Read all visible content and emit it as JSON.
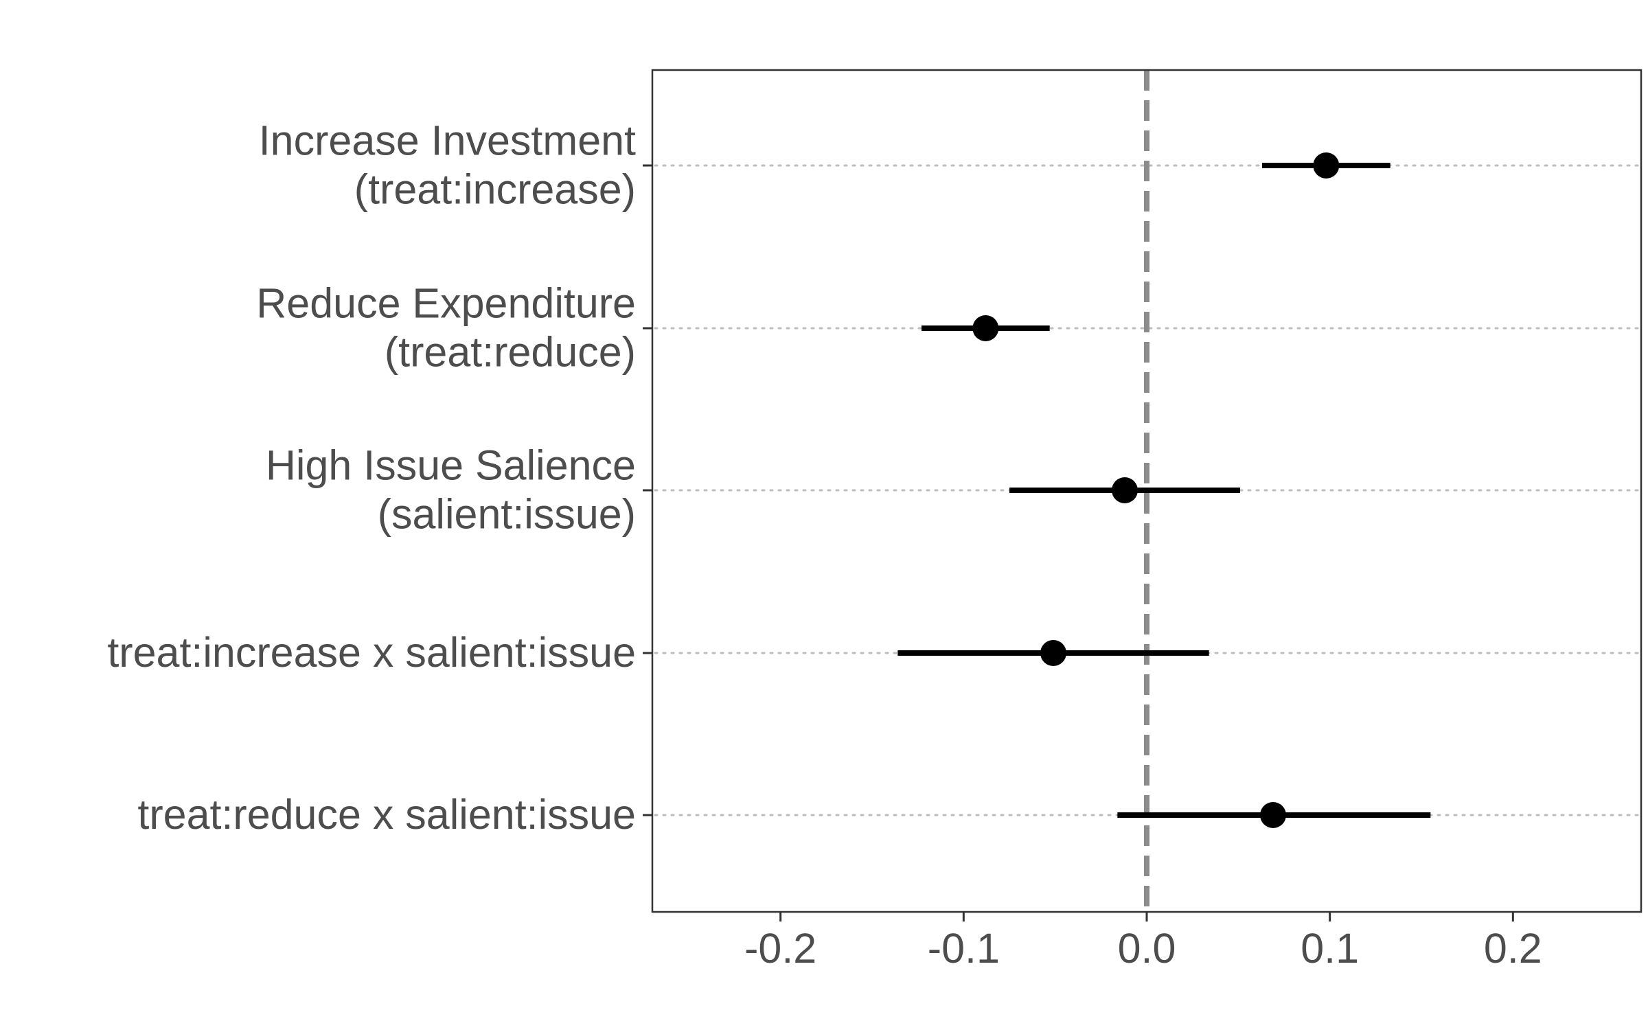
{
  "chart_data": {
    "type": "scatter",
    "subtype": "coefficient-plot",
    "title": "",
    "xlabel": "",
    "ylabel": "",
    "xlim": [
      -0.27,
      0.27
    ],
    "x_ticks": [
      {
        "value": -0.2,
        "label": "-0.2"
      },
      {
        "value": -0.1,
        "label": "-0.1"
      },
      {
        "value": 0.0,
        "label": "0.0"
      },
      {
        "value": 0.1,
        "label": "0.1"
      },
      {
        "value": 0.2,
        "label": "0.2"
      }
    ],
    "reference_line": {
      "x": 0.0,
      "style": "dashed",
      "color": "#8c8c8c"
    },
    "grid": {
      "horizontal_dotted": true,
      "vertical": false
    },
    "point_color": "#000000",
    "terms": [
      {
        "label_lines": [
          "Increase Investment",
          "(treat:increase)"
        ],
        "estimate": 0.098,
        "ci_low": 0.063,
        "ci_high": 0.133
      },
      {
        "label_lines": [
          "Reduce Expenditure",
          "(treat:reduce)"
        ],
        "estimate": -0.088,
        "ci_low": -0.123,
        "ci_high": -0.053
      },
      {
        "label_lines": [
          "High Issue Salience",
          "(salient:issue)"
        ],
        "estimate": -0.012,
        "ci_low": -0.075,
        "ci_high": 0.051
      },
      {
        "label_lines": [
          "treat:increase x salient:issue"
        ],
        "estimate": -0.051,
        "ci_low": -0.136,
        "ci_high": 0.034
      },
      {
        "label_lines": [
          "treat:reduce x salient:issue"
        ],
        "estimate": 0.069,
        "ci_low": -0.016,
        "ci_high": 0.155
      }
    ]
  }
}
